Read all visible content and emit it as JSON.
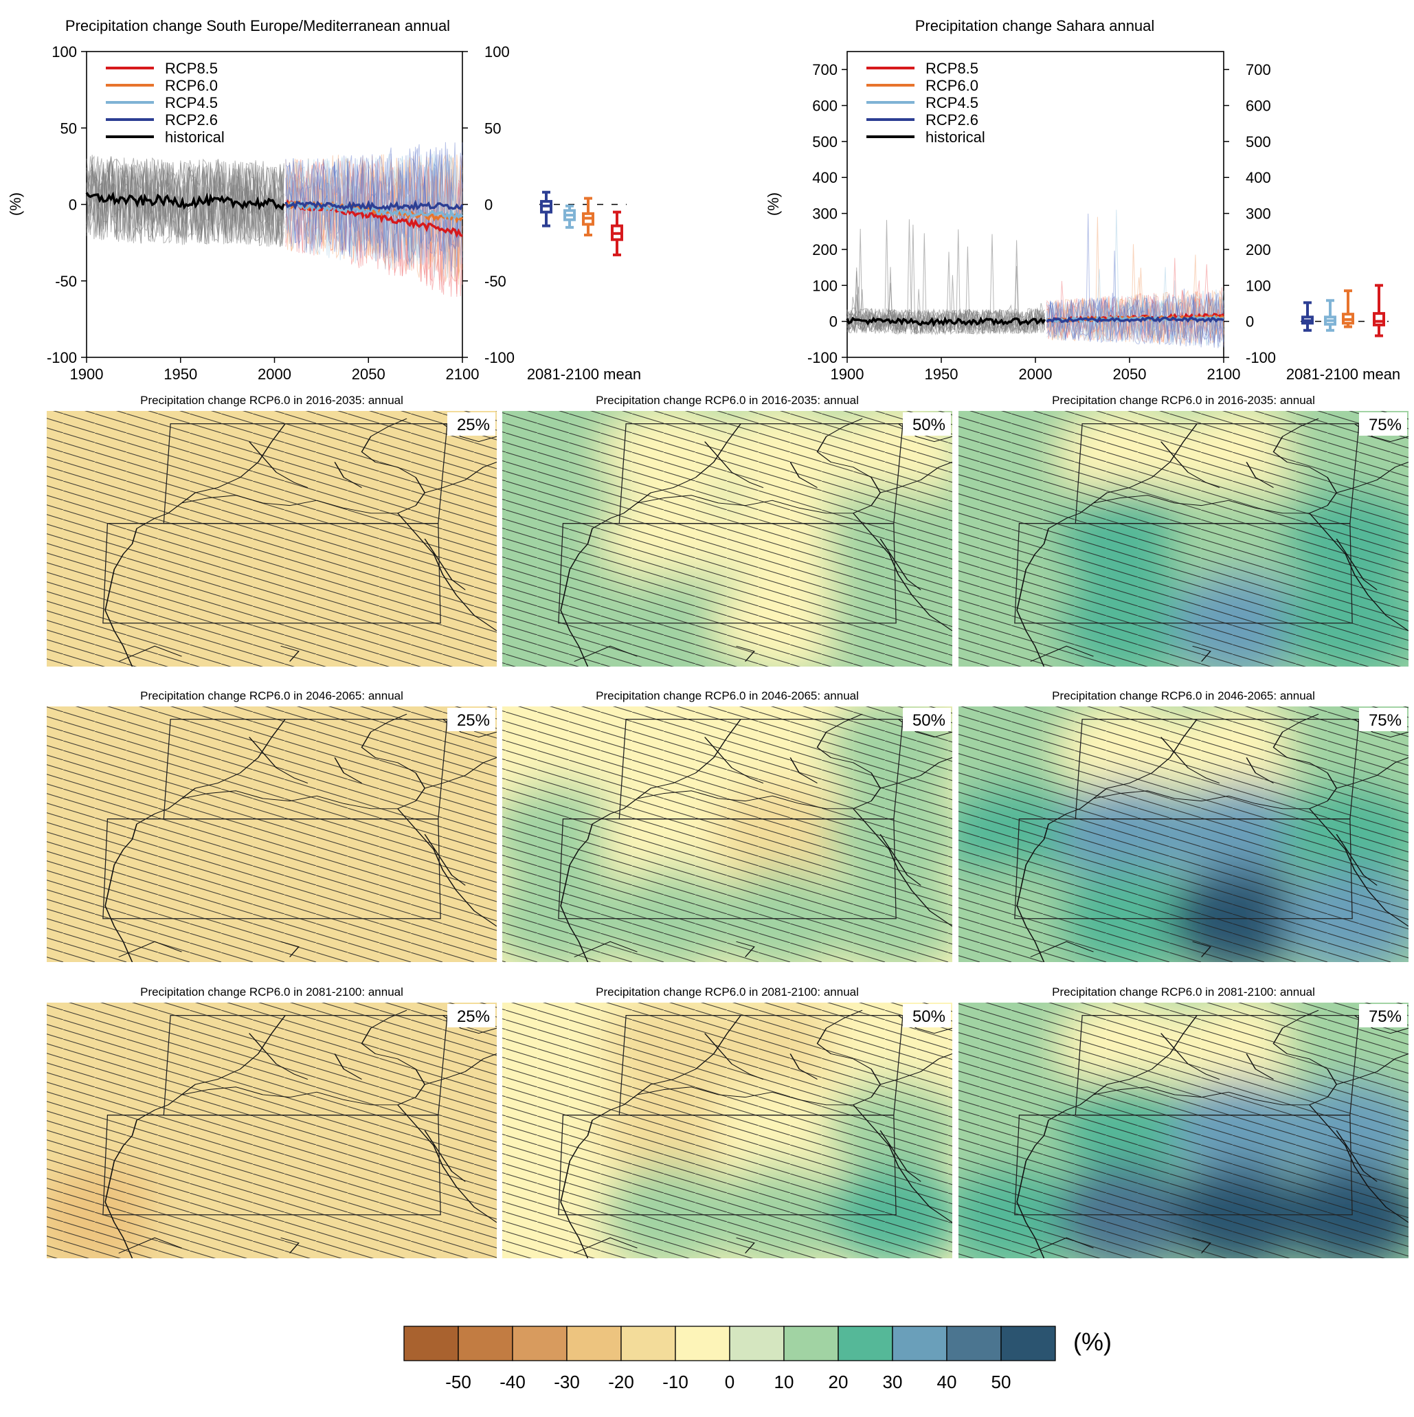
{
  "chart_data": [
    {
      "type": "line",
      "title": "Precipitation change South Europe/Mediterranean annual",
      "ylabel": "(%)",
      "xlim": [
        1900,
        2100
      ],
      "ylim": [
        -100,
        100
      ],
      "x_ticks": [
        "1900",
        "1950",
        "2000",
        "2050",
        "2100"
      ],
      "y_ticks": [
        "100",
        "50",
        "0",
        "-50",
        "-100"
      ],
      "legend": [
        "RCP8.5",
        "RCP6.0",
        "RCP4.5",
        "RCP2.6",
        "historical"
      ],
      "legend_position": "top-left",
      "series": [
        {
          "name": "historical",
          "color": "#000000",
          "x": [
            1900,
            1910,
            1920,
            1930,
            1940,
            1950,
            1960,
            1970,
            1980,
            1990,
            2000,
            2005
          ],
          "values": [
            5,
            4,
            3,
            2,
            3,
            1,
            2,
            2,
            1,
            1,
            0,
            0
          ]
        },
        {
          "name": "RCP2.6",
          "color": "#2c3e93",
          "x": [
            2006,
            2020,
            2040,
            2060,
            2080,
            2100
          ],
          "values": [
            0,
            0,
            -1,
            -1,
            -1,
            -1
          ]
        },
        {
          "name": "RCP4.5",
          "color": "#7fb3d5",
          "x": [
            2006,
            2020,
            2040,
            2060,
            2080,
            2100
          ],
          "values": [
            0,
            -1,
            -3,
            -5,
            -6,
            -7
          ]
        },
        {
          "name": "RCP6.0",
          "color": "#e8742c",
          "x": [
            2006,
            2020,
            2040,
            2060,
            2080,
            2100
          ],
          "values": [
            0,
            -1,
            -2,
            -5,
            -8,
            -9
          ]
        },
        {
          "name": "RCP8.5",
          "color": "#d7191c",
          "x": [
            2006,
            2020,
            2040,
            2060,
            2080,
            2100
          ],
          "values": [
            0,
            -2,
            -5,
            -9,
            -14,
            -19
          ]
        }
      ],
      "mean_label": "2081-2100 mean",
      "box_2081_2100": [
        {
          "name": "RCP2.6",
          "color": "#2c3e93",
          "min": -14,
          "q1": -5,
          "median": -1,
          "q3": 2,
          "max": 8
        },
        {
          "name": "RCP4.5",
          "color": "#7fb3d5",
          "min": -15,
          "q1": -10,
          "median": -7,
          "q3": -4,
          "max": -1
        },
        {
          "name": "RCP6.0",
          "color": "#e8742c",
          "min": -20,
          "q1": -13,
          "median": -9,
          "q3": -6,
          "max": 4
        },
        {
          "name": "RCP8.5",
          "color": "#d7191c",
          "min": -33,
          "q1": -23,
          "median": -19,
          "q3": -14,
          "max": -5
        }
      ]
    },
    {
      "type": "line",
      "title": "Precipitation change Sahara annual",
      "ylabel": "(%)",
      "xlim": [
        1900,
        2100
      ],
      "ylim": [
        -100,
        750
      ],
      "x_ticks": [
        "1900",
        "1950",
        "2000",
        "2050",
        "2100"
      ],
      "y_ticks": [
        "700",
        "600",
        "500",
        "400",
        "300",
        "200",
        "100",
        "0",
        "-100"
      ],
      "legend": [
        "RCP8.5",
        "RCP6.0",
        "RCP4.5",
        "RCP2.6",
        "historical"
      ],
      "legend_position": "top-left",
      "series": [
        {
          "name": "historical",
          "color": "#000000",
          "x": [
            1900,
            1920,
            1940,
            1960,
            1980,
            2000,
            2005
          ],
          "values": [
            3,
            0,
            -2,
            0,
            -1,
            1,
            2
          ]
        },
        {
          "name": "RCP2.6",
          "color": "#2c3e93",
          "x": [
            2006,
            2040,
            2070,
            2100
          ],
          "values": [
            3,
            5,
            6,
            5
          ]
        },
        {
          "name": "RCP4.5",
          "color": "#7fb3d5",
          "x": [
            2006,
            2040,
            2070,
            2100
          ],
          "values": [
            3,
            6,
            8,
            9
          ]
        },
        {
          "name": "RCP6.0",
          "color": "#e8742c",
          "x": [
            2006,
            2040,
            2070,
            2100
          ],
          "values": [
            3,
            7,
            9,
            11
          ]
        },
        {
          "name": "RCP8.5",
          "color": "#d7191c",
          "x": [
            2006,
            2040,
            2070,
            2100
          ],
          "values": [
            3,
            8,
            12,
            16
          ]
        }
      ],
      "mean_label": "2081-2100 mean",
      "box_2081_2100": [
        {
          "name": "RCP2.6",
          "color": "#2c3e93",
          "min": -25,
          "q1": -5,
          "median": 2,
          "q3": 12,
          "max": 52
        },
        {
          "name": "RCP4.5",
          "color": "#7fb3d5",
          "min": -25,
          "q1": -8,
          "median": 2,
          "q3": 12,
          "max": 58
        },
        {
          "name": "RCP6.0",
          "color": "#e8742c",
          "min": -15,
          "q1": -5,
          "median": 5,
          "q3": 20,
          "max": 85
        },
        {
          "name": "RCP8.5",
          "color": "#d7191c",
          "min": -40,
          "q1": -10,
          "median": 0,
          "q3": 22,
          "max": 100
        }
      ]
    },
    {
      "type": "heatmap",
      "panel_title_template": "Precipitation change RCP6.0 in {period}: annual",
      "periods": [
        "2016-2035",
        "2046-2065",
        "2081-2100"
      ],
      "percentiles": [
        "25%",
        "50%",
        "75%"
      ],
      "panels": [
        {
          "period": "2016-2035",
          "percentile": "25%",
          "title": "Precipitation change RCP6.0 in 2016-2035: annual",
          "class_levels": [
            [
              -10,
              -10,
              -10,
              -10
            ],
            [
              -10,
              -10,
              -20,
              -10
            ],
            [
              -10,
              -20,
              -20,
              -20
            ]
          ]
        },
        {
          "period": "2016-2035",
          "percentile": "50%",
          "title": "Precipitation change RCP6.0 in 2016-2035: annual",
          "class_levels": [
            [
              10,
              0,
              0,
              0
            ],
            [
              10,
              0,
              0,
              10
            ],
            [
              10,
              10,
              0,
              10
            ]
          ]
        },
        {
          "period": "2016-2035",
          "percentile": "75%",
          "title": "Precipitation change RCP6.0 in 2016-2035: annual",
          "class_levels": [
            [
              10,
              0,
              0,
              10
            ],
            [
              10,
              20,
              10,
              20
            ],
            [
              10,
              20,
              30,
              20
            ]
          ]
        },
        {
          "period": "2046-2065",
          "percentile": "25%",
          "title": "Precipitation change RCP6.0 in 2046-2065: annual",
          "class_levels": [
            [
              -10,
              -10,
              -10,
              -10
            ],
            [
              -10,
              -20,
              -20,
              -10
            ],
            [
              -20,
              -20,
              -20,
              -20
            ]
          ]
        },
        {
          "period": "2046-2065",
          "percentile": "50%",
          "title": "Precipitation change RCP6.0 in 2046-2065: annual",
          "class_levels": [
            [
              0,
              0,
              0,
              10
            ],
            [
              10,
              0,
              -10,
              10
            ],
            [
              10,
              10,
              10,
              10
            ]
          ]
        },
        {
          "period": "2046-2065",
          "percentile": "75%",
          "title": "Precipitation change RCP6.0 in 2046-2065: annual",
          "class_levels": [
            [
              10,
              0,
              0,
              10
            ],
            [
              20,
              30,
              30,
              20
            ],
            [
              10,
              20,
              50,
              30
            ]
          ]
        },
        {
          "period": "2081-2100",
          "percentile": "25%",
          "title": "Precipitation change RCP6.0 in 2081-2100: annual",
          "class_levels": [
            [
              -10,
              -20,
              -20,
              -10
            ],
            [
              -20,
              -20,
              -20,
              -10
            ],
            [
              -30,
              -20,
              -20,
              -10
            ]
          ]
        },
        {
          "period": "2081-2100",
          "percentile": "50%",
          "title": "Precipitation change RCP6.0 in 2081-2100: annual",
          "class_levels": [
            [
              0,
              -10,
              -10,
              0
            ],
            [
              0,
              -10,
              0,
              10
            ],
            [
              0,
              10,
              10,
              20
            ]
          ]
        },
        {
          "period": "2081-2100",
          "percentile": "75%",
          "title": "Precipitation change RCP6.0 in 2081-2100: annual",
          "class_levels": [
            [
              10,
              0,
              0,
              10
            ],
            [
              10,
              20,
              30,
              30
            ],
            [
              20,
              40,
              50,
              60
            ]
          ]
        }
      ]
    }
  ],
  "colorbar": {
    "unit": "(%)",
    "labels": [
      "-50",
      "-40",
      "-30",
      "-20",
      "-10",
      "0",
      "10",
      "20",
      "30",
      "40",
      "50"
    ],
    "colors": [
      "#a9622f",
      "#c27c42",
      "#d89b5e",
      "#edc47f",
      "#f3dc9a",
      "#fdf4b8",
      "#d5e6c0",
      "#a1d3a3",
      "#55b898",
      "#6a9fba",
      "#4b7590",
      "#2b5470"
    ]
  }
}
